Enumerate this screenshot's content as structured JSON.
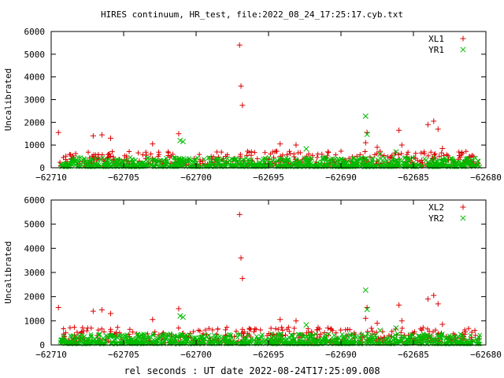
{
  "title": "HIRES continuum, HR_test, file:2022_08_24_17:25:17.cyb.txt",
  "xlabel": "rel seconds : UT date 2022-08-24T17:25:09.008",
  "colors": {
    "red": "#dd0000",
    "green": "#00bb00"
  },
  "chart_data": [
    {
      "type": "scatter",
      "ylabel": "Uncalibrated",
      "xlim": [
        -62710,
        -62680
      ],
      "ylim": [
        0,
        6000
      ],
      "xticks": [
        -62710,
        -62705,
        -62700,
        -62695,
        -62690,
        -62685,
        -62680
      ],
      "yticks": [
        0,
        1000,
        2000,
        3000,
        4000,
        5000,
        6000
      ],
      "legend_position": "top-right",
      "series": [
        {
          "name": "XL1",
          "marker": "+",
          "color": "#dd0000",
          "x": [
            -62709.5,
            -62707.1,
            -62706.5,
            -62705.9,
            -62703.0,
            -62701.2,
            -62697.0,
            -62696.9,
            -62696.8,
            -62694.2,
            -62693.1,
            -62690.9,
            -62688.3,
            -62688.2,
            -62687.5,
            -62686.0,
            -62685.8,
            -62684.0,
            -62683.6,
            -62683.3,
            -62683.0
          ],
          "y": [
            1550,
            1400,
            1450,
            1300,
            1050,
            1500,
            5400,
            3600,
            2750,
            1050,
            1000,
            700,
            1100,
            1550,
            900,
            1650,
            1000,
            1900,
            2050,
            1700,
            850
          ]
        },
        {
          "name": "YR1",
          "marker": "x",
          "color": "#00bb00",
          "x": [
            -62701.1,
            -62700.9,
            -62692.4,
            -62688.3,
            -62688.2,
            -62687.3,
            -62686.2
          ],
          "y": [
            1200,
            1150,
            830,
            2270,
            1470,
            600,
            700
          ]
        }
      ]
    },
    {
      "type": "scatter",
      "ylabel": "Uncalibrated",
      "xlim": [
        -62710,
        -62680
      ],
      "ylim": [
        0,
        6000
      ],
      "xticks": [
        -62710,
        -62705,
        -62700,
        -62695,
        -62690,
        -62685,
        -62680
      ],
      "yticks": [
        0,
        1000,
        2000,
        3000,
        4000,
        5000,
        6000
      ],
      "legend_position": "top-right",
      "series": [
        {
          "name": "XL2",
          "marker": "+",
          "color": "#dd0000",
          "x": [
            -62709.5,
            -62707.1,
            -62706.5,
            -62705.9,
            -62703.0,
            -62701.2,
            -62697.0,
            -62696.9,
            -62696.8,
            -62694.2,
            -62693.1,
            -62690.9,
            -62688.3,
            -62688.2,
            -62687.5,
            -62686.0,
            -62685.8,
            -62684.0,
            -62683.6,
            -62683.3,
            -62683.0
          ],
          "y": [
            1550,
            1400,
            1450,
            1300,
            1050,
            1500,
            5400,
            3600,
            2750,
            1050,
            1000,
            700,
            1100,
            1550,
            900,
            1650,
            1000,
            1900,
            2050,
            1700,
            850
          ]
        },
        {
          "name": "YR2",
          "marker": "x",
          "color": "#00bb00",
          "x": [
            -62701.1,
            -62700.9,
            -62692.4,
            -62688.3,
            -62688.2,
            -62687.3,
            -62686.2
          ],
          "y": [
            1200,
            1150,
            830,
            2270,
            1470,
            600,
            700
          ]
        }
      ]
    }
  ]
}
